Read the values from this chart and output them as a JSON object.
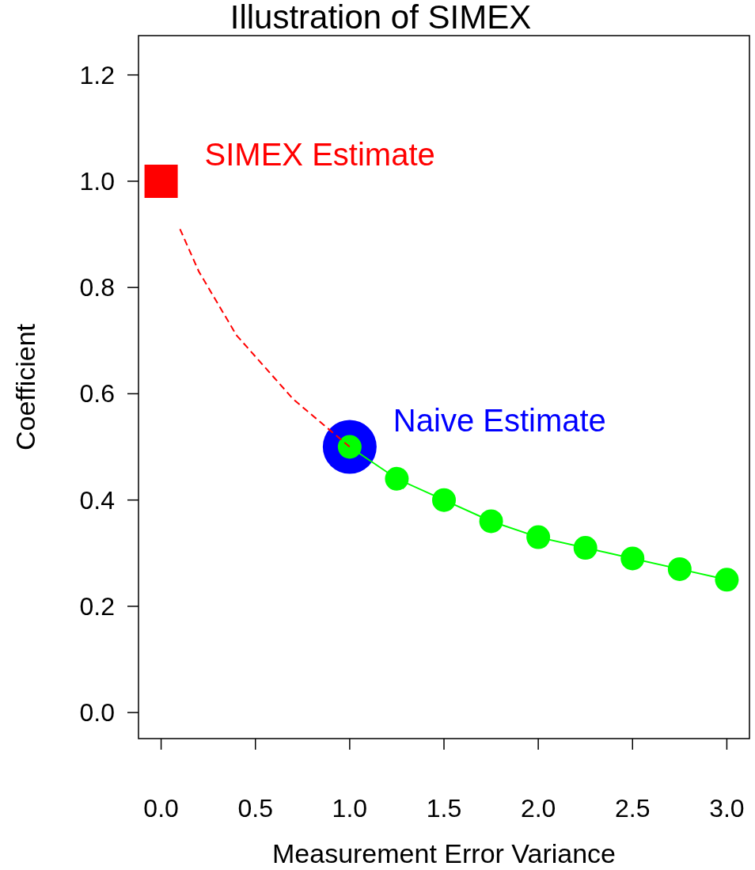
{
  "chart_data": {
    "type": "line",
    "title": "Illustration of SIMEX",
    "xlabel": "Measurement Error Variance",
    "ylabel": "Coefficient",
    "xlim": [
      -0.12,
      3.12
    ],
    "ylim": [
      -0.049,
      1.274
    ],
    "xticks": [
      {
        "value": 0,
        "label": "0.0"
      },
      {
        "value": 0.5,
        "label": "0.5"
      },
      {
        "value": 1,
        "label": "1.0"
      },
      {
        "value": 1.5,
        "label": "1.5"
      },
      {
        "value": 2,
        "label": "2.0"
      },
      {
        "value": 2.5,
        "label": "2.5"
      },
      {
        "value": 3,
        "label": "3.0"
      }
    ],
    "yticks": [
      {
        "value": 0,
        "label": "0.0"
      },
      {
        "value": 0.2,
        "label": "0.2"
      },
      {
        "value": 0.4,
        "label": "0.4"
      },
      {
        "value": 0.6,
        "label": "0.6"
      },
      {
        "value": 0.8,
        "label": "0.8"
      },
      {
        "value": 1,
        "label": "1.0"
      },
      {
        "value": 1.2,
        "label": "1.2"
      }
    ],
    "grid": false,
    "series": [
      {
        "color": "#ff0000",
        "line_style": "dashed",
        "marker": "none",
        "x": [
          0.1,
          0.2,
          0.3,
          0.4,
          0.5,
          0.6,
          0.7,
          0.8,
          0.9,
          1
        ],
        "values": [
          0.91,
          0.83,
          0.77,
          0.71,
          0.67,
          0.63,
          0.59,
          0.56,
          0.53,
          0.5
        ]
      },
      {
        "color": "#00ff00",
        "line_style": "solid",
        "marker": "circle",
        "x": [
          1,
          1.25,
          1.5,
          1.75,
          2,
          2.25,
          2.5,
          2.75,
          3
        ],
        "values": [
          0.5,
          0.44,
          0.4,
          0.36,
          0.33,
          0.31,
          0.29,
          0.27,
          0.25
        ]
      },
      {
        "type": "scatter",
        "name": "SIMEX Estimate",
        "color": "#ff0000",
        "marker": "square",
        "x": [
          0
        ],
        "values": [
          1
        ]
      },
      {
        "type": "scatter",
        "name": "Naive Estimate",
        "color": "#0000ff",
        "marker": "circle",
        "x": [
          1
        ],
        "values": [
          0.5
        ]
      }
    ]
  }
}
